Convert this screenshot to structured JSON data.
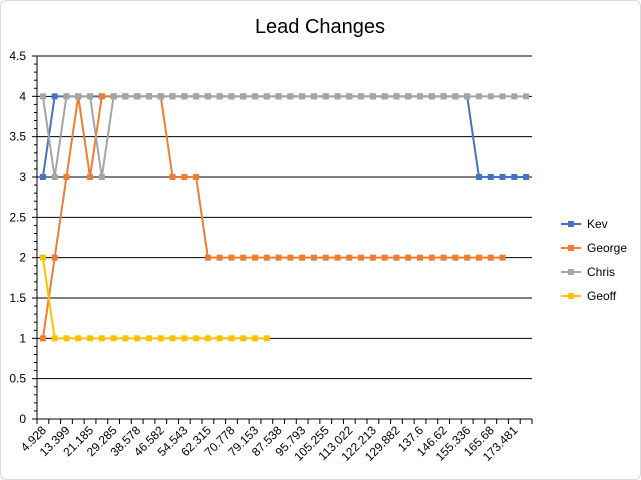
{
  "chart_data": {
    "type": "line",
    "title": "Lead Changes",
    "xlabel": "",
    "ylabel": "",
    "ylim": [
      0,
      4.5
    ],
    "yticks": [
      "0",
      "0.5",
      "1",
      "1.5",
      "2",
      "2.5",
      "3",
      "3.5",
      "4",
      "4.5"
    ],
    "grid": true,
    "legend_position": "right",
    "x_labels": [
      "4.928",
      "13.399",
      "21.185",
      "29.285",
      "38.578",
      "46.582",
      "54.543",
      "62.315",
      "70.778",
      "79.153",
      "87.538",
      "95.793",
      "105.255",
      "113.022",
      "122.213",
      "129.882",
      "137.6",
      "146.62",
      "155.336",
      "165.68",
      "173.481"
    ],
    "n_points": 42,
    "series": [
      {
        "name": "Kev",
        "color": "#4472C4",
        "values": [
          3,
          4,
          4,
          4,
          4,
          4,
          4,
          4,
          4,
          4,
          4,
          4,
          4,
          4,
          4,
          4,
          4,
          4,
          4,
          4,
          4,
          4,
          4,
          4,
          4,
          4,
          4,
          4,
          4,
          4,
          4,
          4,
          4,
          4,
          4,
          4,
          4,
          3,
          3,
          3,
          3,
          3
        ]
      },
      {
        "name": "George",
        "color": "#ED7D31",
        "values": [
          1,
          2,
          3,
          4,
          3,
          4,
          4,
          4,
          4,
          4,
          4,
          3,
          3,
          3,
          2,
          2,
          2,
          2,
          2,
          2,
          2,
          2,
          2,
          2,
          2,
          2,
          2,
          2,
          2,
          2,
          2,
          2,
          2,
          2,
          2,
          2,
          2,
          2,
          2,
          2
        ]
      },
      {
        "name": "Chris",
        "color": "#A5A5A5",
        "values": [
          4,
          3,
          4,
          4,
          4,
          3,
          4,
          4,
          4,
          4,
          4,
          4,
          4,
          4,
          4,
          4,
          4,
          4,
          4,
          4,
          4,
          4,
          4,
          4,
          4,
          4,
          4,
          4,
          4,
          4,
          4,
          4,
          4,
          4,
          4,
          4,
          4,
          4,
          4,
          4,
          4,
          4
        ]
      },
      {
        "name": "Geoff",
        "color": "#FFC000",
        "values": [
          2,
          1,
          1,
          1,
          1,
          1,
          1,
          1,
          1,
          1,
          1,
          1,
          1,
          1,
          1,
          1,
          1,
          1,
          1,
          1
        ]
      }
    ]
  }
}
